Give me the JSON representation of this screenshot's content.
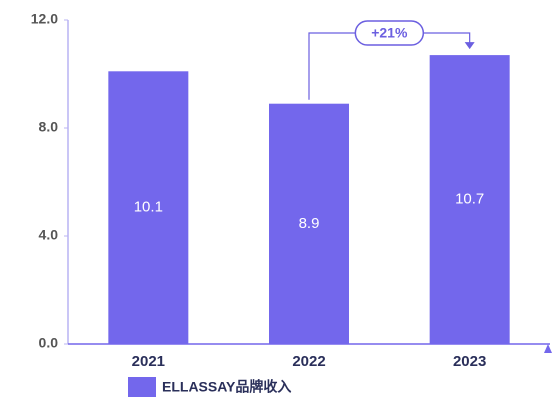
{
  "chart_data": {
    "type": "bar",
    "categories": [
      "2021",
      "2022",
      "2023"
    ],
    "series": [
      {
        "name": "ELLASSAY品牌收入",
        "color": "#7367ec",
        "values": [
          10.1,
          8.9,
          10.7
        ]
      }
    ],
    "ylim": [
      0,
      12
    ],
    "yticks": [
      {
        "value": 0,
        "label": "0.0"
      },
      {
        "value": 4,
        "label": "4.0"
      },
      {
        "value": 8,
        "label": "8.0"
      },
      {
        "value": 12,
        "label": "12.0"
      }
    ],
    "annotation": "+21%",
    "grid": false
  }
}
